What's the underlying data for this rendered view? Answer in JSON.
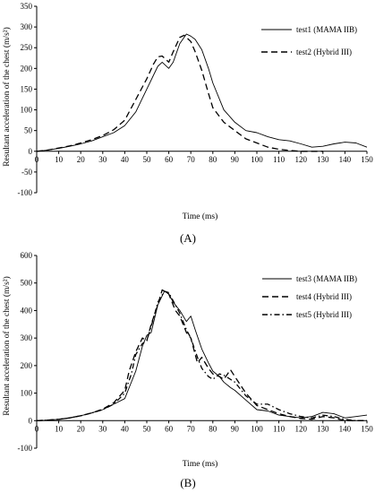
{
  "chart_data": [
    {
      "type": "line",
      "panel_label": "(A)",
      "xlabel": "Time (ms)",
      "ylabel": "Resultant acceleration of the chest (m/s²)",
      "xlim": [
        0,
        150
      ],
      "ylim": [
        -100,
        350
      ],
      "xticks": [
        0,
        10,
        20,
        30,
        40,
        50,
        60,
        70,
        80,
        90,
        100,
        110,
        120,
        130,
        140,
        150
      ],
      "yticks": [
        -100,
        -50,
        0,
        50,
        100,
        150,
        200,
        250,
        300,
        350
      ],
      "grid": false,
      "legend_position": "top-right",
      "series": [
        {
          "name": "test1 (MAMA IIB)",
          "style": "solid",
          "x": [
            0,
            5,
            10,
            15,
            20,
            25,
            30,
            35,
            40,
            45,
            50,
            55,
            57,
            60,
            62,
            65,
            68,
            70,
            72,
            75,
            78,
            80,
            85,
            90,
            95,
            100,
            105,
            110,
            115,
            120,
            125,
            130,
            135,
            140,
            145,
            150
          ],
          "y": [
            0,
            3,
            7,
            12,
            18,
            25,
            35,
            45,
            62,
            95,
            150,
            205,
            215,
            200,
            215,
            260,
            283,
            278,
            270,
            245,
            200,
            165,
            100,
            70,
            50,
            45,
            35,
            28,
            25,
            18,
            10,
            12,
            18,
            22,
            20,
            10
          ]
        },
        {
          "name": "test2 (Hybrid III)",
          "style": "dashed",
          "x": [
            0,
            5,
            10,
            15,
            20,
            25,
            30,
            35,
            40,
            45,
            50,
            53,
            55,
            57,
            60,
            62,
            65,
            67,
            70,
            72,
            75,
            78,
            80,
            85,
            90,
            95,
            100,
            105,
            110,
            115,
            120,
            125,
            130
          ],
          "y": [
            0,
            3,
            8,
            13,
            20,
            28,
            38,
            52,
            75,
            125,
            175,
            210,
            228,
            230,
            215,
            240,
            275,
            280,
            265,
            240,
            195,
            140,
            105,
            70,
            50,
            30,
            20,
            10,
            5,
            2,
            0,
            0,
            0
          ]
        }
      ]
    },
    {
      "type": "line",
      "panel_label": "(B)",
      "xlabel": "Time (ms)",
      "ylabel": "Resultant acceleration of the chest (m/s²)",
      "xlim": [
        0,
        150
      ],
      "ylim": [
        -100,
        600
      ],
      "xticks": [
        0,
        10,
        20,
        30,
        40,
        50,
        60,
        70,
        80,
        90,
        100,
        110,
        120,
        130,
        140,
        150
      ],
      "yticks": [
        -100,
        0,
        100,
        200,
        300,
        400,
        500,
        600
      ],
      "grid": false,
      "legend_position": "top-right",
      "series": [
        {
          "name": "test3 (MAMA IIB)",
          "style": "solid",
          "x": [
            0,
            5,
            10,
            15,
            20,
            25,
            30,
            35,
            40,
            45,
            48,
            50,
            52,
            55,
            58,
            60,
            62,
            65,
            68,
            70,
            72,
            75,
            78,
            80,
            83,
            85,
            88,
            90,
            95,
            100,
            105,
            110,
            115,
            120,
            125,
            130,
            135,
            140,
            145,
            150
          ],
          "y": [
            0,
            2,
            5,
            10,
            18,
            28,
            40,
            60,
            80,
            180,
            270,
            310,
            320,
            420,
            470,
            460,
            430,
            400,
            360,
            380,
            330,
            260,
            210,
            180,
            160,
            140,
            120,
            110,
            75,
            40,
            35,
            20,
            15,
            10,
            15,
            30,
            25,
            10,
            15,
            20
          ]
        },
        {
          "name": "test4 (Hybrid III)",
          "style": "dashed",
          "x": [
            0,
            5,
            10,
            15,
            20,
            25,
            30,
            35,
            40,
            42,
            45,
            48,
            50,
            52,
            55,
            57,
            60,
            63,
            65,
            68,
            70,
            73,
            75,
            78,
            80,
            83,
            85,
            88,
            90,
            95,
            100,
            105,
            110,
            115,
            120,
            125,
            130,
            135,
            140,
            145,
            150
          ],
          "y": [
            0,
            2,
            5,
            10,
            18,
            28,
            42,
            65,
            110,
            180,
            250,
            300,
            290,
            350,
            420,
            475,
            460,
            400,
            380,
            320,
            300,
            210,
            230,
            190,
            170,
            160,
            150,
            185,
            160,
            100,
            55,
            40,
            25,
            15,
            8,
            5,
            15,
            10,
            0,
            0,
            0
          ]
        },
        {
          "name": "test5 (Hybrid III)",
          "style": "dashdot",
          "x": [
            0,
            5,
            10,
            15,
            20,
            25,
            30,
            35,
            40,
            43,
            45,
            48,
            50,
            53,
            55,
            58,
            60,
            63,
            65,
            68,
            70,
            73,
            75,
            78,
            80,
            83,
            85,
            88,
            90,
            95,
            100,
            105,
            110,
            115,
            120,
            125,
            130,
            135,
            140,
            145,
            150
          ],
          "y": [
            0,
            2,
            5,
            10,
            18,
            28,
            40,
            60,
            100,
            170,
            240,
            280,
            290,
            370,
            430,
            470,
            465,
            420,
            390,
            330,
            300,
            230,
            190,
            160,
            150,
            170,
            165,
            150,
            140,
            90,
            60,
            60,
            40,
            25,
            15,
            10,
            20,
            15,
            5,
            0,
            0
          ]
        }
      ]
    }
  ]
}
